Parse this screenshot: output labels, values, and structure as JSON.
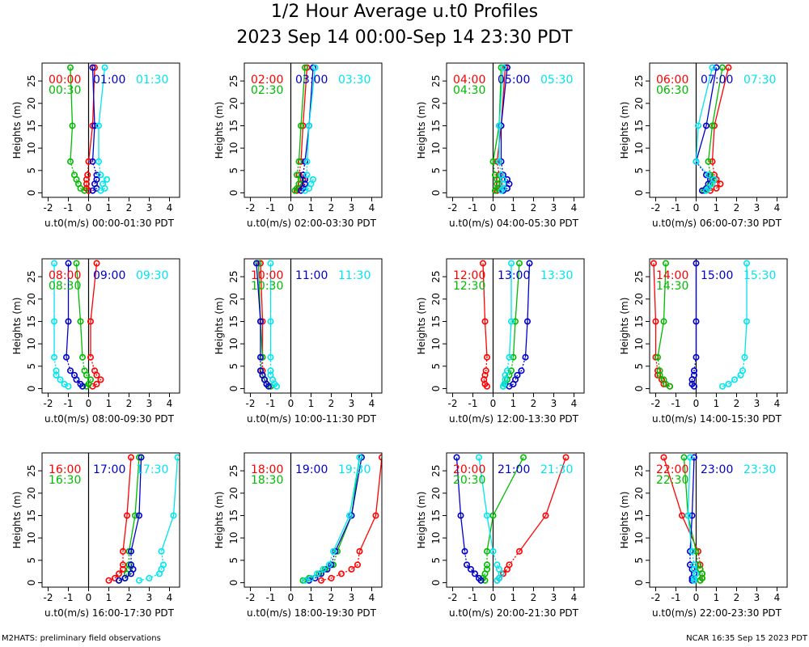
{
  "header": {
    "title": "1/2 Hour Average u.t0 Profiles",
    "subtitle": "2023 Sep 14 00:00-Sep 14 23:30 PDT"
  },
  "footer": {
    "left": "M2HATS: preliminary field observations",
    "right": "NCAR 16:35 Sep 15 2023 PDT"
  },
  "colors": {
    "red": "#ff0000",
    "green": "#00bb00",
    "blue": "#0000cc",
    "cyan": "#00e5ee"
  },
  "chart_data": [
    {
      "type": "line",
      "ylabel": "Heights (m)",
      "xlabel": "u.t0(m/s) 00:00-01:30 PDT",
      "xlim": [
        -2.3,
        4.5
      ],
      "ylim": [
        -1,
        29
      ],
      "xticks": [
        -2,
        -1,
        0,
        1,
        2,
        3,
        4
      ],
      "yticks": [
        0,
        5,
        10,
        15,
        20,
        25
      ],
      "heights": [
        0.5,
        1,
        2,
        3,
        4,
        7,
        15,
        28
      ],
      "series": [
        {
          "name": "00:00",
          "color": "red",
          "x": [
            0.0,
            -0.1,
            -0.1,
            -0.1,
            -0.05,
            0.0,
            0.2,
            0.3
          ]
        },
        {
          "name": "00:30",
          "color": "green",
          "x": [
            -0.2,
            -0.4,
            -0.5,
            -0.6,
            -0.7,
            -0.9,
            -0.8,
            -0.9
          ]
        },
        {
          "name": "01:00",
          "color": "blue",
          "x": [
            0.2,
            0.4,
            0.3,
            0.4,
            0.4,
            0.2,
            0.3,
            0.2
          ]
        },
        {
          "name": "01:30",
          "color": "cyan",
          "x": [
            0.6,
            0.8,
            0.7,
            0.9,
            0.6,
            0.5,
            0.5,
            0.8
          ]
        }
      ]
    },
    {
      "type": "line",
      "ylabel": "Heights (m)",
      "xlabel": "u.t0(m/s) 02:00-03:30 PDT",
      "xlim": [
        -2.3,
        4.5
      ],
      "ylim": [
        -1,
        29
      ],
      "xticks": [
        -2,
        -1,
        0,
        1,
        2,
        3,
        4
      ],
      "yticks": [
        0,
        5,
        10,
        15,
        20,
        25
      ],
      "heights": [
        0.5,
        1,
        2,
        3,
        4,
        7,
        15,
        28
      ],
      "series": [
        {
          "name": "02:00",
          "color": "red",
          "x": [
            0.3,
            0.4,
            0.5,
            0.6,
            0.4,
            0.5,
            0.6,
            0.8
          ]
        },
        {
          "name": "02:30",
          "color": "green",
          "x": [
            0.2,
            0.3,
            0.4,
            0.5,
            0.3,
            0.4,
            0.5,
            0.7
          ]
        },
        {
          "name": "03:00",
          "color": "blue",
          "x": [
            0.5,
            0.6,
            0.7,
            0.7,
            0.6,
            0.7,
            0.9,
            1.1
          ]
        },
        {
          "name": "03:30",
          "color": "cyan",
          "x": [
            0.7,
            0.9,
            1.0,
            1.1,
            0.8,
            0.8,
            0.9,
            1.2
          ]
        }
      ]
    },
    {
      "type": "line",
      "ylabel": "Heights (m)",
      "xlabel": "u.t0(m/s) 04:00-05:30 PDT",
      "xlim": [
        -2.3,
        4.5
      ],
      "ylim": [
        -1,
        29
      ],
      "xticks": [
        -2,
        -1,
        0,
        1,
        2,
        3,
        4
      ],
      "yticks": [
        0,
        5,
        10,
        15,
        20,
        25
      ],
      "heights": [
        0.5,
        1,
        2,
        3,
        4,
        7,
        15,
        28
      ],
      "series": [
        {
          "name": "04:00",
          "color": "red",
          "x": [
            0.2,
            0.3,
            0.3,
            0.3,
            0.3,
            0.2,
            0.4,
            0.6
          ]
        },
        {
          "name": "04:30",
          "color": "green",
          "x": [
            0.1,
            0.2,
            0.2,
            0.2,
            0.1,
            0.0,
            0.3,
            0.4
          ]
        },
        {
          "name": "05:00",
          "color": "blue",
          "x": [
            0.5,
            0.7,
            0.8,
            0.7,
            0.5,
            0.4,
            0.4,
            0.7
          ]
        },
        {
          "name": "05:30",
          "color": "cyan",
          "x": [
            0.4,
            0.5,
            0.5,
            0.5,
            0.4,
            0.3,
            0.3,
            0.5
          ]
        }
      ]
    },
    {
      "type": "line",
      "ylabel": "Heights (m)",
      "xlabel": "u.t0(m/s) 06:00-07:30 PDT",
      "xlim": [
        -2.3,
        4.5
      ],
      "ylim": [
        -1,
        29
      ],
      "xticks": [
        -2,
        -1,
        0,
        1,
        2,
        3,
        4
      ],
      "yticks": [
        0,
        5,
        10,
        15,
        20,
        25
      ],
      "heights": [
        0.5,
        1,
        2,
        3,
        4,
        7,
        15,
        28
      ],
      "series": [
        {
          "name": "06:00",
          "color": "red",
          "x": [
            0.7,
            1.0,
            1.2,
            1.0,
            0.9,
            0.8,
            0.9,
            1.6
          ]
        },
        {
          "name": "06:30",
          "color": "green",
          "x": [
            0.4,
            0.6,
            0.7,
            0.8,
            0.7,
            0.6,
            0.8,
            1.3
          ]
        },
        {
          "name": "07:00",
          "color": "blue",
          "x": [
            0.3,
            0.5,
            0.6,
            0.7,
            0.5,
            0.0,
            0.5,
            1.0
          ]
        },
        {
          "name": "07:30",
          "color": "cyan",
          "x": [
            0.5,
            0.6,
            0.8,
            0.9,
            0.6,
            0.0,
            0.1,
            0.8
          ]
        }
      ]
    },
    {
      "type": "line",
      "ylabel": "Heights (m)",
      "xlabel": "u.t0(m/s) 08:00-09:30 PDT",
      "xlim": [
        -2.3,
        4.5
      ],
      "ylim": [
        -1,
        29
      ],
      "xticks": [
        -2,
        -1,
        0,
        1,
        2,
        3,
        4
      ],
      "yticks": [
        0,
        5,
        10,
        15,
        20,
        25
      ],
      "heights": [
        0.5,
        1,
        2,
        3,
        4,
        7,
        15,
        28
      ],
      "series": [
        {
          "name": "08:00",
          "color": "red",
          "x": [
            0.2,
            0.4,
            0.6,
            0.4,
            0.3,
            0.1,
            0.1,
            0.4
          ]
        },
        {
          "name": "08:30",
          "color": "green",
          "x": [
            -0.1,
            0.0,
            0.1,
            -0.1,
            -0.2,
            -0.3,
            -0.4,
            -0.6
          ]
        },
        {
          "name": "09:00",
          "color": "blue",
          "x": [
            -0.3,
            -0.4,
            -0.6,
            -0.7,
            -0.9,
            -1.1,
            -1.0,
            -1.0
          ]
        },
        {
          "name": "09:30",
          "color": "cyan",
          "x": [
            -1.0,
            -1.2,
            -1.4,
            -1.6,
            -1.6,
            -1.7,
            -1.7,
            -1.7
          ]
        }
      ]
    },
    {
      "type": "line",
      "ylabel": "Heights (m)",
      "xlabel": "u.t0(m/s) 10:00-11:30 PDT",
      "xlim": [
        -2.3,
        4.5
      ],
      "ylim": [
        -1,
        29
      ],
      "xticks": [
        -2,
        -1,
        0,
        1,
        2,
        3,
        4
      ],
      "yticks": [
        0,
        5,
        10,
        15,
        20,
        25
      ],
      "heights": [
        0.5,
        1,
        2,
        3,
        4,
        7,
        15,
        28
      ],
      "series": [
        {
          "name": "10:00",
          "color": "red",
          "x": [
            -1.0,
            -1.2,
            -1.3,
            -1.4,
            -1.4,
            -1.4,
            -1.4,
            -1.5
          ]
        },
        {
          "name": "10:30",
          "color": "green",
          "x": [
            -1.0,
            -1.2,
            -1.3,
            -1.4,
            -1.5,
            -1.4,
            -1.5,
            -1.6
          ]
        },
        {
          "name": "11:00",
          "color": "blue",
          "x": [
            -1.1,
            -1.2,
            -1.3,
            -1.4,
            -1.5,
            -1.5,
            -1.5,
            -1.7
          ]
        },
        {
          "name": "11:30",
          "color": "cyan",
          "x": [
            -0.7,
            -0.8,
            -0.9,
            -1.0,
            -1.0,
            -1.0,
            -1.0,
            -1.0
          ]
        }
      ]
    },
    {
      "type": "line",
      "ylabel": "Heights (m)",
      "xlabel": "u.t0(m/s) 12:00-13:30 PDT",
      "xlim": [
        -2.3,
        4.5
      ],
      "ylim": [
        -1,
        29
      ],
      "xticks": [
        -2,
        -1,
        0,
        1,
        2,
        3,
        4
      ],
      "yticks": [
        0,
        5,
        10,
        15,
        20,
        25
      ],
      "heights": [
        0.5,
        1,
        2,
        3,
        4,
        7,
        15,
        28
      ],
      "series": [
        {
          "name": "12:00",
          "color": "red",
          "x": [
            -0.3,
            -0.4,
            -0.45,
            -0.4,
            -0.35,
            -0.3,
            -0.4,
            -0.5
          ]
        },
        {
          "name": "12:30",
          "color": "green",
          "x": [
            0.5,
            0.6,
            0.7,
            0.8,
            0.9,
            1.0,
            1.1,
            1.3
          ]
        },
        {
          "name": "13:00",
          "color": "blue",
          "x": [
            0.8,
            1.0,
            1.1,
            1.2,
            1.4,
            1.6,
            1.7,
            1.8
          ]
        },
        {
          "name": "13:30",
          "color": "cyan",
          "x": [
            0.5,
            0.55,
            0.6,
            0.6,
            0.7,
            0.8,
            0.9,
            0.9
          ]
        }
      ]
    },
    {
      "type": "line",
      "ylabel": "Heights (m)",
      "xlabel": "u.t0(m/s) 14:00-15:30 PDT",
      "xlim": [
        -2.3,
        4.5
      ],
      "ylim": [
        -1,
        29
      ],
      "xticks": [
        -2,
        -1,
        0,
        1,
        2,
        3,
        4
      ],
      "yticks": [
        0,
        5,
        10,
        15,
        20,
        25
      ],
      "heights": [
        0.5,
        1,
        2,
        3,
        4,
        7,
        15,
        28
      ],
      "series": [
        {
          "name": "14:00",
          "color": "red",
          "x": [
            -1.3,
            -1.6,
            -1.7,
            -1.9,
            -1.9,
            -2.0,
            -2.0,
            -2.1
          ]
        },
        {
          "name": "14:30",
          "color": "green",
          "x": [
            -1.3,
            -1.5,
            -1.6,
            -1.8,
            -1.8,
            -1.9,
            -1.6,
            -1.5
          ]
        },
        {
          "name": "15:00",
          "color": "blue",
          "x": [
            -0.1,
            -0.2,
            -0.2,
            -0.1,
            -0.1,
            0.0,
            0.0,
            0.0
          ]
        },
        {
          "name": "15:30",
          "color": "cyan",
          "x": [
            1.3,
            1.6,
            1.9,
            2.2,
            2.3,
            2.4,
            2.5,
            2.5
          ]
        }
      ]
    },
    {
      "type": "line",
      "ylabel": "Heights (m)",
      "xlabel": "u.t0(m/s) 16:00-17:30 PDT",
      "xlim": [
        -2.3,
        4.5
      ],
      "ylim": [
        -1,
        29
      ],
      "xticks": [
        -2,
        -1,
        0,
        1,
        2,
        3,
        4
      ],
      "yticks": [
        0,
        5,
        10,
        15,
        20,
        25
      ],
      "heights": [
        0.5,
        1,
        2,
        3,
        4,
        7,
        15,
        28
      ],
      "series": [
        {
          "name": "16:00",
          "color": "red",
          "x": [
            1.0,
            1.3,
            1.5,
            1.7,
            1.7,
            1.7,
            1.9,
            2.1
          ]
        },
        {
          "name": "16:30",
          "color": "green",
          "x": [
            1.5,
            1.8,
            1.9,
            2.0,
            2.0,
            2.0,
            2.3,
            2.5
          ]
        },
        {
          "name": "17:00",
          "color": "blue",
          "x": [
            1.5,
            1.8,
            2.1,
            2.2,
            2.1,
            2.1,
            2.5,
            2.6
          ]
        },
        {
          "name": "17:30",
          "color": "cyan",
          "x": [
            2.5,
            3.0,
            3.5,
            3.6,
            3.7,
            3.6,
            4.2,
            4.4
          ]
        }
      ]
    },
    {
      "type": "line",
      "ylabel": "Heights (m)",
      "xlabel": "u.t0(m/s) 18:00-19:30 PDT",
      "xlim": [
        -2.3,
        4.5
      ],
      "ylim": [
        -1,
        29
      ],
      "xticks": [
        -2,
        -1,
        0,
        1,
        2,
        3,
        4
      ],
      "yticks": [
        0,
        5,
        10,
        15,
        20,
        25
      ],
      "heights": [
        0.5,
        1,
        2,
        3,
        4,
        7,
        15,
        28
      ],
      "series": [
        {
          "name": "18:00",
          "color": "red",
          "x": [
            1.5,
            2.0,
            2.5,
            3.0,
            3.3,
            3.4,
            4.2,
            4.5
          ]
        },
        {
          "name": "18:30",
          "color": "green",
          "x": [
            0.6,
            0.9,
            1.4,
            1.7,
            2.1,
            2.3,
            3.0,
            3.4
          ]
        },
        {
          "name": "19:00",
          "color": "blue",
          "x": [
            0.9,
            1.2,
            1.5,
            1.8,
            2.0,
            2.2,
            3.0,
            3.5
          ]
        },
        {
          "name": "19:30",
          "color": "cyan",
          "x": [
            0.7,
            1.0,
            1.3,
            1.6,
            1.9,
            2.1,
            2.9,
            3.4
          ]
        }
      ]
    },
    {
      "type": "line",
      "ylabel": "Heights (m)",
      "xlabel": "u.t0(m/s) 20:00-21:30 PDT",
      "xlim": [
        -2.3,
        4.5
      ],
      "ylim": [
        -1,
        29
      ],
      "xticks": [
        -2,
        -1,
        0,
        1,
        2,
        3,
        4
      ],
      "yticks": [
        0,
        5,
        10,
        15,
        20,
        25
      ],
      "heights": [
        0.5,
        1,
        2,
        3,
        4,
        7,
        15,
        28
      ],
      "series": [
        {
          "name": "20:00",
          "color": "red",
          "x": [
            0.2,
            0.3,
            0.5,
            0.7,
            0.8,
            1.3,
            2.6,
            3.6
          ]
        },
        {
          "name": "20:30",
          "color": "green",
          "x": [
            -0.4,
            -0.5,
            -0.4,
            -0.3,
            -0.3,
            -0.3,
            0.0,
            1.5
          ]
        },
        {
          "name": "21:00",
          "color": "blue",
          "x": [
            -0.6,
            -0.7,
            -0.9,
            -1.1,
            -1.3,
            -1.4,
            -1.6,
            -1.8
          ]
        },
        {
          "name": "21:30",
          "color": "cyan",
          "x": [
            0.2,
            0.3,
            0.4,
            0.3,
            0.2,
            0.0,
            -0.3,
            -0.7
          ]
        }
      ]
    },
    {
      "type": "line",
      "ylabel": "Heights (m)",
      "xlabel": "u.t0(m/s) 22:00-23:30 PDT",
      "xlim": [
        -2.3,
        4.5
      ],
      "ylim": [
        -1,
        29
      ],
      "xticks": [
        -2,
        -1,
        0,
        1,
        2,
        3,
        4
      ],
      "yticks": [
        0,
        5,
        10,
        15,
        20,
        25
      ],
      "heights": [
        0.5,
        1,
        2,
        3,
        4,
        7,
        15,
        28
      ],
      "series": [
        {
          "name": "22:00",
          "color": "red",
          "x": [
            0.2,
            0.3,
            0.3,
            0.2,
            0.2,
            0.1,
            -0.7,
            -1.6
          ]
        },
        {
          "name": "22:30",
          "color": "green",
          "x": [
            0.2,
            0.3,
            0.3,
            0.2,
            0.1,
            0.0,
            -0.4,
            -0.6
          ]
        },
        {
          "name": "23:00",
          "color": "blue",
          "x": [
            -0.2,
            -0.2,
            -0.1,
            -0.2,
            -0.3,
            -0.3,
            -0.2,
            -0.1
          ]
        },
        {
          "name": "23:30",
          "color": "cyan",
          "x": [
            -0.1,
            -0.1,
            0.0,
            -0.1,
            -0.1,
            -0.2,
            -0.4,
            -0.3
          ]
        }
      ]
    }
  ]
}
